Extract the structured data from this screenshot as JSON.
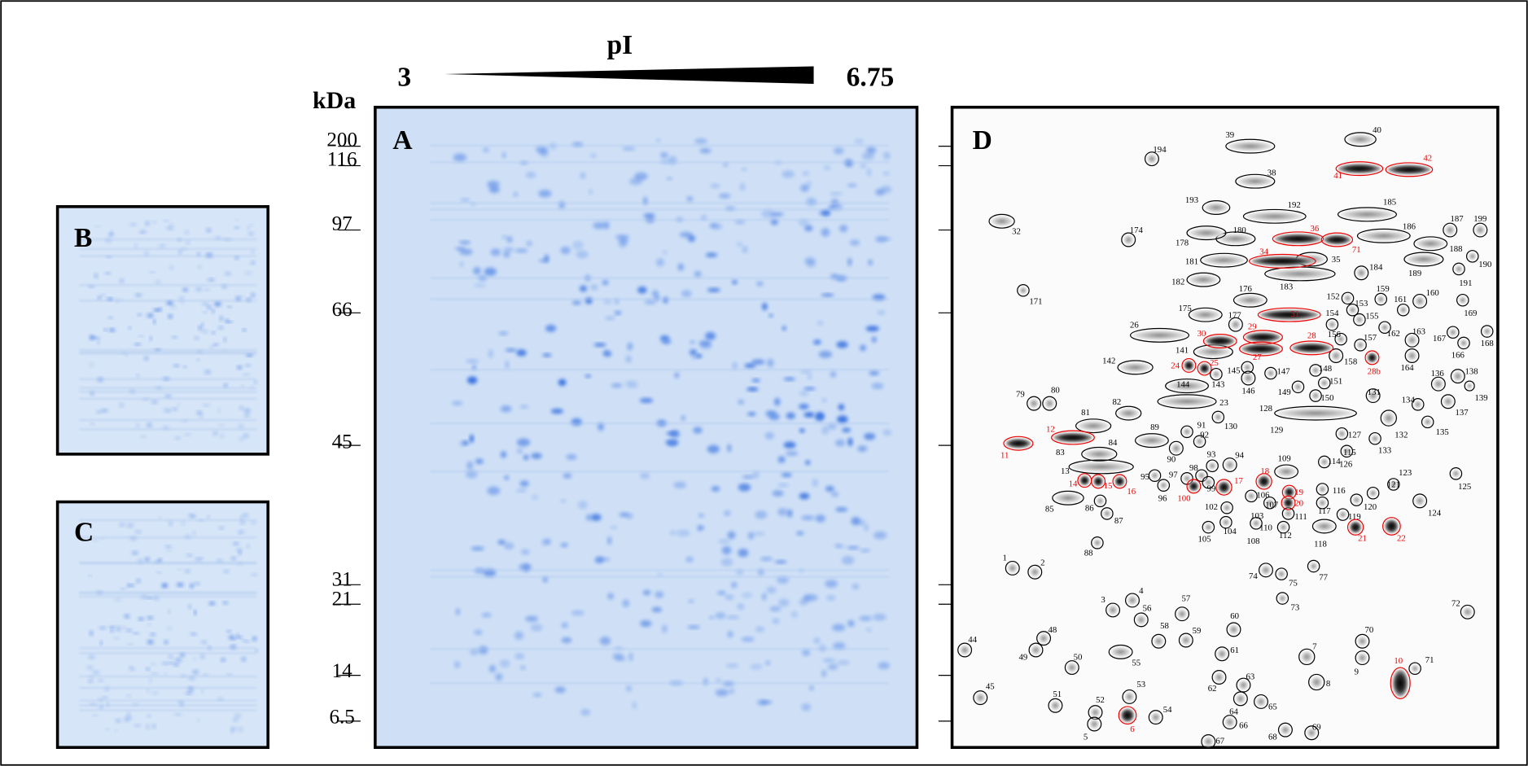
{
  "axis": {
    "pI_label": "pI",
    "pI_min": "3",
    "pI_max": "6.75",
    "mw_unit": "kDa",
    "mw_ticks": [
      "200",
      "116",
      "97",
      "66",
      "45",
      "31",
      "21",
      "14",
      "6.5"
    ]
  },
  "panels": {
    "A": "A",
    "B": "B",
    "C": "C",
    "D": "D"
  },
  "panel_d": {
    "black_spots": [
      "194",
      "39",
      "40",
      "38",
      "193",
      "192",
      "185",
      "32",
      "174",
      "180",
      "178",
      "186",
      "187",
      "199",
      "188",
      "190",
      "181",
      "35",
      "183",
      "184",
      "189",
      "191",
      "182",
      "171",
      "176",
      "152",
      "153",
      "159",
      "161",
      "160",
      "169",
      "175",
      "177",
      "154",
      "155",
      "26",
      "156",
      "157",
      "162",
      "163",
      "167",
      "168",
      "166",
      "141",
      "158",
      "164",
      "142",
      "145",
      "147",
      "148",
      "146",
      "143",
      "151",
      "136",
      "138",
      "144",
      "149",
      "131",
      "79",
      "80",
      "150",
      "134",
      "139",
      "137",
      "23",
      "82",
      "128",
      "81",
      "130",
      "132",
      "135",
      "129",
      "89",
      "91",
      "92",
      "127",
      "84",
      "83",
      "133",
      "126",
      "90",
      "93",
      "94",
      "109",
      "115",
      "114",
      "13",
      "98",
      "97",
      "95",
      "123",
      "125",
      "99",
      "96",
      "106",
      "116",
      "121",
      "102",
      "107",
      "103",
      "111",
      "117",
      "120",
      "119",
      "124",
      "85",
      "86",
      "87",
      "110",
      "104",
      "112",
      "118",
      "105",
      "108",
      "88",
      "1",
      "2",
      "74",
      "75",
      "77",
      "4",
      "72",
      "73",
      "3",
      "57",
      "56",
      "60",
      "70",
      "48",
      "44",
      "58",
      "59",
      "49",
      "50",
      "55",
      "61",
      "7",
      "9",
      "71",
      "62",
      "63",
      "8",
      "45",
      "51",
      "53",
      "52",
      "65",
      "64",
      "54",
      "66",
      "69",
      "68",
      "67",
      "5"
    ],
    "red_spots": [
      "42",
      "41",
      "36",
      "71",
      "34",
      "31",
      "30",
      "29",
      "28",
      "27",
      "28b",
      "24",
      "25",
      "12",
      "11",
      "18",
      "17",
      "14",
      "15",
      "16",
      "19",
      "20",
      "100",
      "21",
      "22",
      "10",
      "6"
    ]
  }
}
